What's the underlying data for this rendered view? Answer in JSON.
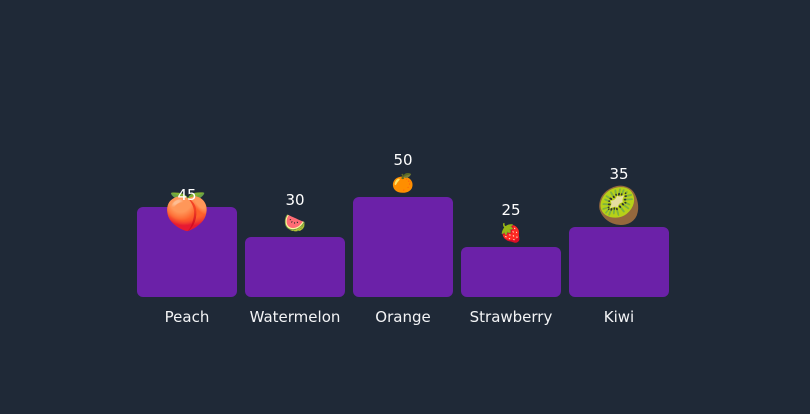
{
  "colors": {
    "background": "#1f2937",
    "bar": "#6b21a8",
    "text": "#ffffff"
  },
  "chart_data": {
    "type": "bar",
    "title": "",
    "xlabel": "",
    "ylabel": "",
    "grid": false,
    "legend": "none",
    "ylim": [
      0,
      50
    ],
    "categories": [
      "Peach",
      "Watermelon",
      "Orange",
      "Strawberry",
      "Kiwi"
    ],
    "values": [
      45,
      30,
      50,
      25,
      35
    ],
    "icons": [
      "peach-icon",
      "watermelon-icon",
      "orange-icon",
      "strawberry-icon",
      "kiwi-icon"
    ],
    "icon_glyphs": [
      "🍑",
      "🍉",
      "🍊",
      "🍓",
      "🥝"
    ]
  }
}
